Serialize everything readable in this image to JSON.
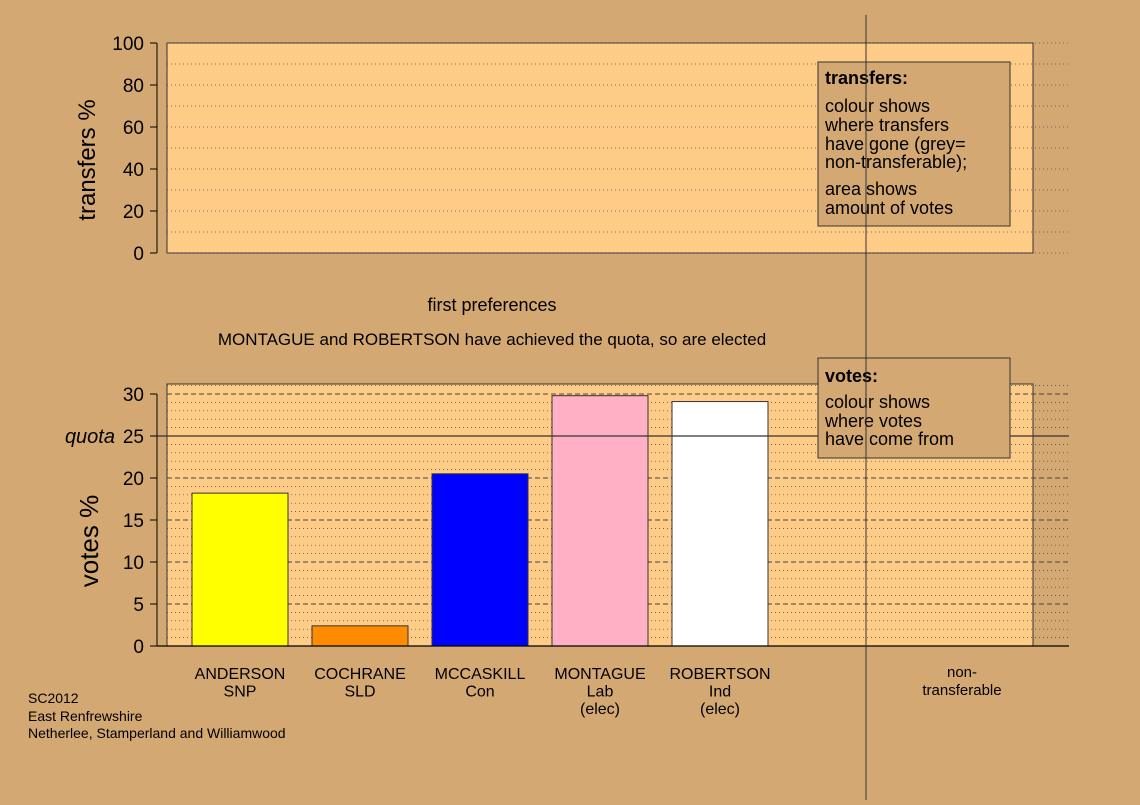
{
  "chart_data": [
    {
      "type": "bar",
      "ylabel": "transfers %",
      "ylim": [
        0,
        100
      ],
      "yticks": [
        0,
        20,
        40,
        60,
        80,
        100
      ],
      "categories": [],
      "values": [],
      "legend": {
        "title": "transfers:",
        "lines": [
          "colour shows",
          "where transfers",
          "have gone (grey=",
          "non-transferable);"
        ],
        "lines2": [
          "area shows",
          "amount of votes"
        ],
        "placement": "top-right"
      },
      "grid": true
    },
    {
      "type": "bar",
      "title": "first preferences",
      "subtitle": "MONTAGUE and ROBERTSON have achieved the quota, so are elected",
      "ylabel": "votes %",
      "ylim": [
        0,
        31
      ],
      "yticks": [
        0,
        5,
        10,
        15,
        20,
        25,
        30
      ],
      "quota": {
        "label": "quota",
        "value": 25
      },
      "categories": [
        [
          "ANDERSON",
          "SNP"
        ],
        [
          "COCHRANE",
          "SLD"
        ],
        [
          "MCCASKILL",
          "Con"
        ],
        [
          "MONTAGUE",
          "Lab",
          "(elec)"
        ],
        [
          "ROBERTSON",
          "Ind",
          "(elec)"
        ]
      ],
      "values": [
        18.2,
        2.4,
        20.5,
        29.8,
        29.1
      ],
      "colors": [
        "#ffff00",
        "#ff8c00",
        "#0000ff",
        "#ffb0c4",
        "#ffffff"
      ],
      "extra_category": [
        "non-",
        "transferable"
      ],
      "legend": {
        "title": "votes:",
        "lines": [
          "colour shows",
          "where votes",
          "have come from"
        ],
        "placement": "top-right"
      },
      "grid": true
    }
  ],
  "footer": {
    "lines": [
      "SC2012",
      "East Renfrewshire",
      "Netherlee, Stamperland and Williamwood"
    ]
  }
}
